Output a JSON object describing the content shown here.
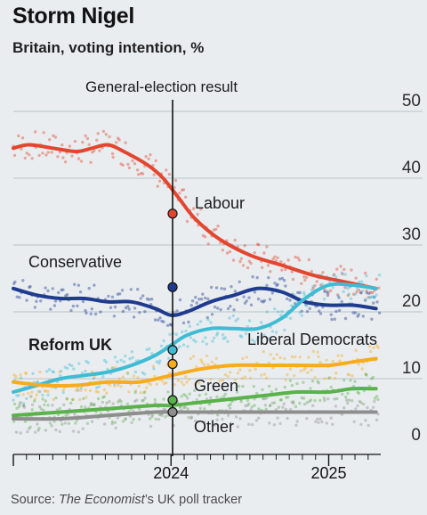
{
  "header": {
    "title": "Storm Nigel",
    "subtitle": "Britain, voting intention, %"
  },
  "source": {
    "prefix": "Source: ",
    "publication": "The Economist",
    "suffix": "’s UK poll tracker"
  },
  "chart_data": {
    "type": "line",
    "ylim": [
      0,
      50
    ],
    "yticks": [
      0,
      10,
      20,
      30,
      40,
      50
    ],
    "x_range": [
      2023.0,
      2025.33
    ],
    "xticks": [
      {
        "value": 2024.0,
        "label": "2024"
      },
      {
        "value": 2025.0,
        "label": "2025"
      }
    ],
    "annotation": {
      "x": 2024.01,
      "label": "General-election result"
    },
    "series": [
      {
        "name": "Labour",
        "color": "#e3452f",
        "points": [
          [
            2023.0,
            44.5
          ],
          [
            2023.1,
            45.0
          ],
          [
            2023.25,
            44.5
          ],
          [
            2023.4,
            44.0
          ],
          [
            2023.5,
            44.5
          ],
          [
            2023.6,
            45.0
          ],
          [
            2023.7,
            44.0
          ],
          [
            2023.85,
            42.0
          ],
          [
            2023.95,
            40.0
          ],
          [
            2024.05,
            37.0
          ],
          [
            2024.15,
            34.0
          ],
          [
            2024.3,
            31.0
          ],
          [
            2024.5,
            28.5
          ],
          [
            2024.7,
            27.0
          ],
          [
            2024.9,
            25.5
          ],
          [
            2025.1,
            24.5
          ],
          [
            2025.3,
            23.5
          ]
        ],
        "result": 34.7
      },
      {
        "name": "Conservative",
        "color": "#1f3b8f",
        "points": [
          [
            2023.0,
            23.5
          ],
          [
            2023.15,
            22.5
          ],
          [
            2023.3,
            22.0
          ],
          [
            2023.45,
            22.0
          ],
          [
            2023.6,
            21.5
          ],
          [
            2023.75,
            21.5
          ],
          [
            2023.9,
            20.5
          ],
          [
            2024.0,
            19.5
          ],
          [
            2024.1,
            20.0
          ],
          [
            2024.25,
            21.5
          ],
          [
            2024.4,
            22.5
          ],
          [
            2024.55,
            23.5
          ],
          [
            2024.7,
            23.0
          ],
          [
            2024.85,
            21.5
          ],
          [
            2025.0,
            21.0
          ],
          [
            2025.15,
            21.0
          ],
          [
            2025.3,
            20.5
          ]
        ],
        "result": 23.7
      },
      {
        "name": "Reform UK",
        "color": "#3fbcd4",
        "points": [
          [
            2023.0,
            8.0
          ],
          [
            2023.15,
            9.0
          ],
          [
            2023.3,
            10.0
          ],
          [
            2023.45,
            10.5
          ],
          [
            2023.6,
            11.0
          ],
          [
            2023.75,
            12.0
          ],
          [
            2023.9,
            13.5
          ],
          [
            2024.0,
            15.0
          ],
          [
            2024.1,
            16.5
          ],
          [
            2024.25,
            17.5
          ],
          [
            2024.4,
            17.5
          ],
          [
            2024.55,
            17.5
          ],
          [
            2024.7,
            19.0
          ],
          [
            2024.85,
            22.0
          ],
          [
            2025.0,
            24.0
          ],
          [
            2025.15,
            24.0
          ],
          [
            2025.3,
            23.5
          ]
        ],
        "result": 14.3
      },
      {
        "name": "Liberal Democrats",
        "color": "#f7ab1f",
        "points": [
          [
            2023.0,
            9.5
          ],
          [
            2023.2,
            9.0
          ],
          [
            2023.4,
            9.0
          ],
          [
            2023.6,
            9.5
          ],
          [
            2023.8,
            9.5
          ],
          [
            2024.0,
            10.5
          ],
          [
            2024.2,
            11.5
          ],
          [
            2024.4,
            12.0
          ],
          [
            2024.6,
            12.0
          ],
          [
            2024.8,
            12.0
          ],
          [
            2025.0,
            12.0
          ],
          [
            2025.15,
            12.5
          ],
          [
            2025.3,
            13.0
          ]
        ],
        "result": 12.2
      },
      {
        "name": "Green",
        "color": "#5ab24b",
        "points": [
          [
            2023.0,
            4.5
          ],
          [
            2023.3,
            5.0
          ],
          [
            2023.6,
            5.5
          ],
          [
            2023.9,
            6.0
          ],
          [
            2024.0,
            6.0
          ],
          [
            2024.2,
            6.5
          ],
          [
            2024.4,
            7.0
          ],
          [
            2024.6,
            7.5
          ],
          [
            2024.8,
            8.0
          ],
          [
            2025.0,
            8.0
          ],
          [
            2025.15,
            8.5
          ],
          [
            2025.3,
            8.5
          ]
        ],
        "result": 6.8
      },
      {
        "name": "Other",
        "color": "#8e8e8e",
        "points": [
          [
            2023.0,
            4.0
          ],
          [
            2023.3,
            4.0
          ],
          [
            2023.6,
            4.5
          ],
          [
            2023.9,
            5.0
          ],
          [
            2024.0,
            5.0
          ],
          [
            2024.2,
            5.0
          ],
          [
            2024.4,
            5.0
          ],
          [
            2024.6,
            5.0
          ],
          [
            2024.8,
            5.0
          ],
          [
            2025.0,
            5.0
          ],
          [
            2025.15,
            5.0
          ],
          [
            2025.3,
            5.0
          ]
        ],
        "result": 5.0
      }
    ],
    "dots_per_series": "individual polls shown as faint dots"
  }
}
